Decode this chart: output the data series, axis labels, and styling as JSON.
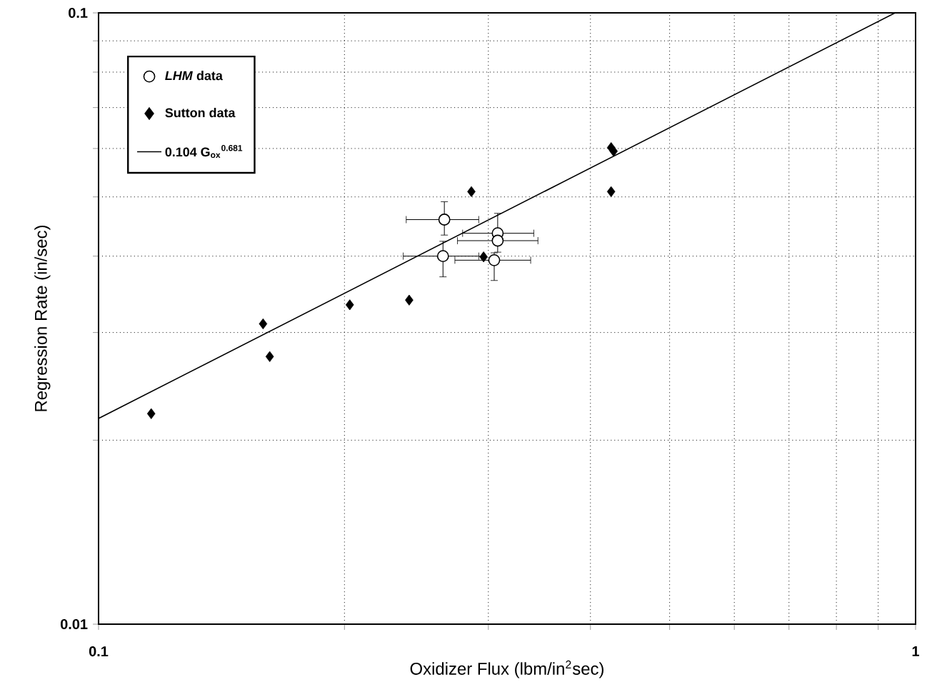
{
  "chart_data": {
    "type": "scatter",
    "xlabel": "Oxidizer Flux (lbm/in$^{2}$sec)",
    "ylabel": "Regression Rate (in/sec)",
    "log": "xy",
    "grid": true,
    "legend": "top left",
    "xlim": [
      0.1,
      1
    ],
    "ylim": [
      0.01,
      0.1
    ],
    "xticks": [
      0.1,
      {
        "value": 0.2,
        "label": null
      },
      {
        "value": 0.3,
        "label": null
      },
      {
        "value": 0.4,
        "label": null
      },
      {
        "value": 0.5,
        "label": null
      },
      {
        "value": 0.6,
        "label": null
      },
      {
        "value": 0.7,
        "label": null
      },
      {
        "value": 0.8,
        "label": null
      },
      {
        "value": 0.9,
        "label": null
      },
      1
    ],
    "yticks": [
      0.01,
      {
        "value": 0.02,
        "label": null
      },
      {
        "value": 0.03,
        "label": null
      },
      {
        "value": 0.04,
        "label": null
      },
      {
        "value": 0.05,
        "label": null
      },
      {
        "value": 0.06,
        "label": null
      },
      {
        "value": 0.07,
        "label": null
      },
      {
        "value": 0.08,
        "label": null
      },
      {
        "value": 0.09,
        "label": null
      },
      0.1
    ],
    "series": [
      {
        "name": "*LHM* data",
        "type": "scatter",
        "marker": "circle",
        "color": "#000000",
        "x": [
          0.265,
          0.264,
          0.308,
          0.308,
          0.305
        ],
        "values": [
          0.0459,
          0.04,
          0.0436,
          0.0424,
          0.0394
        ],
        "errors": [
          [
            0.0433,
            0.0491
          ],
          [
            0.037,
            0.0423
          ],
          [
            0.0406,
            0.047
          ],
          null,
          [
            0.0365,
            0.0405
          ]
        ],
        "xerrors": [
          [
            0.238,
            0.292
          ],
          [
            0.236,
            0.292
          ],
          [
            0.279,
            0.341
          ],
          [
            0.275,
            0.345
          ],
          [
            0.273,
            0.338
          ]
        ]
      },
      {
        "name": "Sutton data",
        "type": "scatter",
        "marker": "diamond",
        "color": "#000000",
        "x": [
          0.116,
          0.159,
          0.162,
          0.203,
          0.24,
          0.286,
          0.296,
          0.424,
          0.427,
          0.424
        ],
        "values": [
          0.0221,
          0.031,
          0.0274,
          0.0333,
          0.0339,
          0.051,
          0.0399,
          0.0602,
          0.0594,
          0.051
        ]
      },
      {
        "name": "0.104 G$_{ox}$$^{0.681}$",
        "type": "line",
        "marker": "none",
        "line_style": "solid",
        "color": "#000000",
        "x": [
          0.1,
          0.944
        ],
        "values": [
          0.0217,
          0.1
        ]
      }
    ]
  }
}
